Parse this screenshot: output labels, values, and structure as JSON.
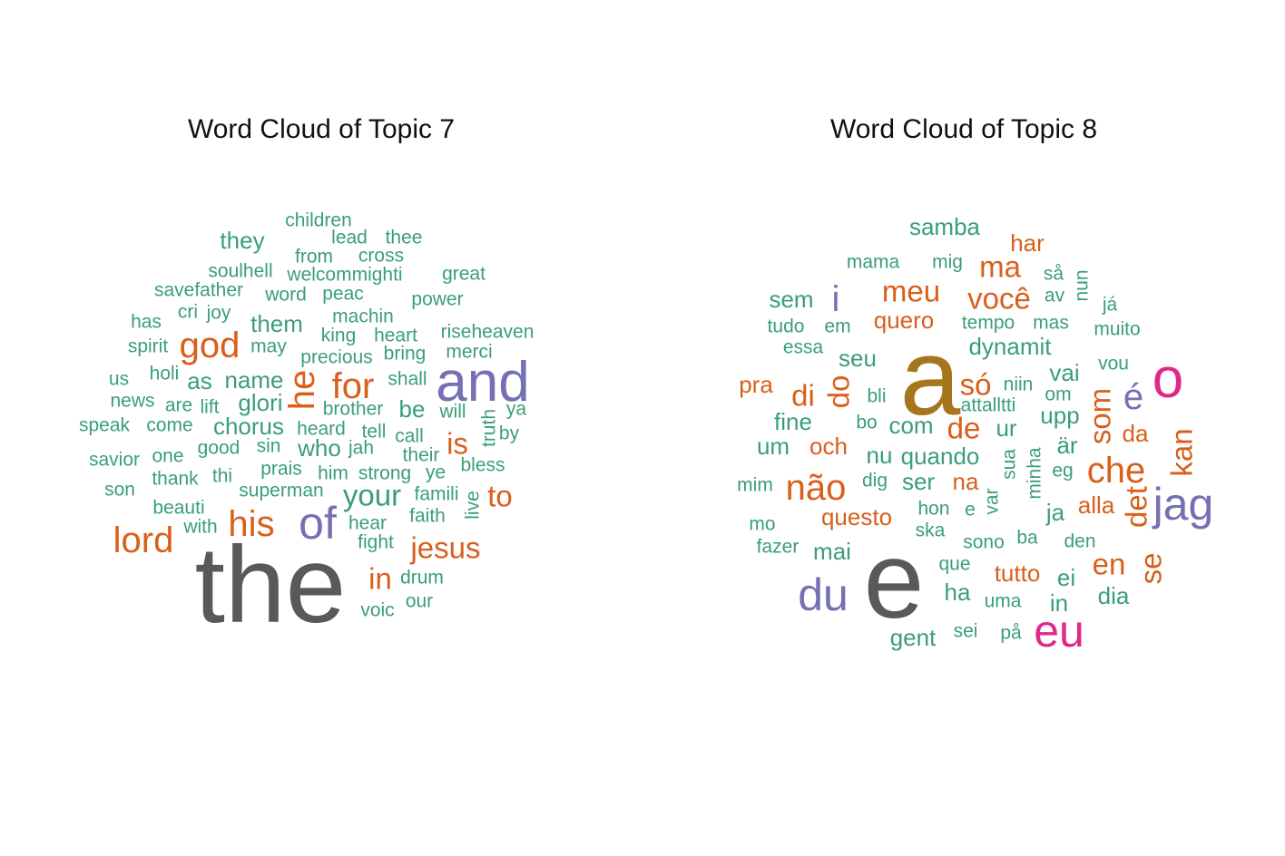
{
  "colors": {
    "green": "#3a9e78",
    "orange": "#d95f1a",
    "purple": "#7570b3",
    "gray": "#595959",
    "pink": "#e0288a",
    "brown": "#a6761d"
  },
  "panels": [
    {
      "title": "Word Cloud of Topic  7",
      "words": [
        {
          "text": "the",
          "weight": 10,
          "color": "gray"
        },
        {
          "text": "and",
          "weight": 6,
          "color": "purple"
        },
        {
          "text": "of",
          "weight": 5,
          "color": "purple"
        },
        {
          "text": "lord",
          "weight": 4,
          "color": "orange"
        },
        {
          "text": "god",
          "weight": 4,
          "color": "orange"
        },
        {
          "text": "for",
          "weight": 4,
          "color": "orange"
        },
        {
          "text": "he",
          "weight": 4,
          "color": "orange",
          "vertical": true
        },
        {
          "text": "his",
          "weight": 4,
          "color": "orange"
        },
        {
          "text": "is",
          "weight": 3,
          "color": "orange"
        },
        {
          "text": "to",
          "weight": 3,
          "color": "orange"
        },
        {
          "text": "jesus",
          "weight": 3,
          "color": "orange"
        },
        {
          "text": "in",
          "weight": 3,
          "color": "orange"
        },
        {
          "text": "your",
          "weight": 3,
          "color": "green"
        },
        {
          "text": "children",
          "weight": 1,
          "color": "green"
        },
        {
          "text": "they",
          "weight": 2,
          "color": "green"
        },
        {
          "text": "lead",
          "weight": 1,
          "color": "green"
        },
        {
          "text": "thee",
          "weight": 1,
          "color": "green"
        },
        {
          "text": "from",
          "weight": 1,
          "color": "green"
        },
        {
          "text": "cross",
          "weight": 1,
          "color": "green"
        },
        {
          "text": "soulhell",
          "weight": 1,
          "color": "green"
        },
        {
          "text": "welcommighti",
          "weight": 1,
          "color": "green"
        },
        {
          "text": "great",
          "weight": 1,
          "color": "green"
        },
        {
          "text": "savefather",
          "weight": 1,
          "color": "green"
        },
        {
          "text": "word",
          "weight": 1,
          "color": "green"
        },
        {
          "text": "peac",
          "weight": 1,
          "color": "green"
        },
        {
          "text": "power",
          "weight": 1,
          "color": "green"
        },
        {
          "text": "has",
          "weight": 1,
          "color": "green"
        },
        {
          "text": "cri",
          "weight": 1,
          "color": "green"
        },
        {
          "text": "joy",
          "weight": 1,
          "color": "green"
        },
        {
          "text": "them",
          "weight": 2,
          "color": "green"
        },
        {
          "text": "machin",
          "weight": 1,
          "color": "green"
        },
        {
          "text": "king",
          "weight": 1,
          "color": "green"
        },
        {
          "text": "heart",
          "weight": 1,
          "color": "green"
        },
        {
          "text": "riseheaven",
          "weight": 1,
          "color": "green"
        },
        {
          "text": "spirit",
          "weight": 1,
          "color": "green"
        },
        {
          "text": "may",
          "weight": 1,
          "color": "green"
        },
        {
          "text": "precious",
          "weight": 1,
          "color": "green"
        },
        {
          "text": "bring",
          "weight": 1,
          "color": "green"
        },
        {
          "text": "merci",
          "weight": 1,
          "color": "green"
        },
        {
          "text": "us",
          "weight": 1,
          "color": "green"
        },
        {
          "text": "holi",
          "weight": 1,
          "color": "green"
        },
        {
          "text": "as",
          "weight": 2,
          "color": "green"
        },
        {
          "text": "name",
          "weight": 2,
          "color": "green"
        },
        {
          "text": "shall",
          "weight": 1,
          "color": "green"
        },
        {
          "text": "news",
          "weight": 1,
          "color": "green"
        },
        {
          "text": "are",
          "weight": 1,
          "color": "green"
        },
        {
          "text": "lift",
          "weight": 1,
          "color": "green"
        },
        {
          "text": "glori",
          "weight": 2,
          "color": "green"
        },
        {
          "text": "brother",
          "weight": 1,
          "color": "green"
        },
        {
          "text": "be",
          "weight": 2,
          "color": "green"
        },
        {
          "text": "will",
          "weight": 1,
          "color": "green"
        },
        {
          "text": "truth",
          "weight": 1,
          "color": "green",
          "vertical": true
        },
        {
          "text": "ya",
          "weight": 1,
          "color": "green"
        },
        {
          "text": "speak",
          "weight": 1,
          "color": "green"
        },
        {
          "text": "come",
          "weight": 1,
          "color": "green"
        },
        {
          "text": "chorus",
          "weight": 2,
          "color": "green"
        },
        {
          "text": "heard",
          "weight": 1,
          "color": "green"
        },
        {
          "text": "tell",
          "weight": 1,
          "color": "green"
        },
        {
          "text": "call",
          "weight": 1,
          "color": "green"
        },
        {
          "text": "by",
          "weight": 1,
          "color": "green"
        },
        {
          "text": "savior",
          "weight": 1,
          "color": "green"
        },
        {
          "text": "one",
          "weight": 1,
          "color": "green"
        },
        {
          "text": "good",
          "weight": 1,
          "color": "green"
        },
        {
          "text": "sin",
          "weight": 1,
          "color": "green"
        },
        {
          "text": "who",
          "weight": 2,
          "color": "green"
        },
        {
          "text": "jah",
          "weight": 1,
          "color": "green"
        },
        {
          "text": "their",
          "weight": 1,
          "color": "green"
        },
        {
          "text": "bless",
          "weight": 1,
          "color": "green"
        },
        {
          "text": "son",
          "weight": 1,
          "color": "green"
        },
        {
          "text": "thank",
          "weight": 1,
          "color": "green"
        },
        {
          "text": "thi",
          "weight": 1,
          "color": "green"
        },
        {
          "text": "prais",
          "weight": 1,
          "color": "green"
        },
        {
          "text": "him",
          "weight": 1,
          "color": "green"
        },
        {
          "text": "strong",
          "weight": 1,
          "color": "green"
        },
        {
          "text": "ye",
          "weight": 1,
          "color": "green"
        },
        {
          "text": "beauti",
          "weight": 1,
          "color": "green"
        },
        {
          "text": "superman",
          "weight": 1,
          "color": "green"
        },
        {
          "text": "famili",
          "weight": 1,
          "color": "green"
        },
        {
          "text": "live",
          "weight": 1,
          "color": "green",
          "vertical": true
        },
        {
          "text": "with",
          "weight": 1,
          "color": "green"
        },
        {
          "text": "hear",
          "weight": 1,
          "color": "green"
        },
        {
          "text": "faith",
          "weight": 1,
          "color": "green"
        },
        {
          "text": "fight",
          "weight": 1,
          "color": "green"
        },
        {
          "text": "drum",
          "weight": 1,
          "color": "green"
        },
        {
          "text": "our",
          "weight": 1,
          "color": "green"
        },
        {
          "text": "voic",
          "weight": 1,
          "color": "green"
        }
      ]
    },
    {
      "title": "Word Cloud of Topic  8",
      "words": [
        {
          "text": "a",
          "weight": 10,
          "color": "brown"
        },
        {
          "text": "e",
          "weight": 10,
          "color": "gray"
        },
        {
          "text": "o",
          "weight": 6,
          "color": "pink"
        },
        {
          "text": "eu",
          "weight": 5,
          "color": "pink"
        },
        {
          "text": "du",
          "weight": 5,
          "color": "purple"
        },
        {
          "text": "jag",
          "weight": 5,
          "color": "purple"
        },
        {
          "text": "é",
          "weight": 4,
          "color": "purple"
        },
        {
          "text": "i",
          "weight": 4,
          "color": "purple"
        },
        {
          "text": "não",
          "weight": 4,
          "color": "orange"
        },
        {
          "text": "che",
          "weight": 4,
          "color": "orange"
        },
        {
          "text": "meu",
          "weight": 3,
          "color": "orange"
        },
        {
          "text": "você",
          "weight": 3,
          "color": "orange"
        },
        {
          "text": "ma",
          "weight": 3,
          "color": "orange"
        },
        {
          "text": "har",
          "weight": 2,
          "color": "orange"
        },
        {
          "text": "di",
          "weight": 3,
          "color": "orange"
        },
        {
          "text": "do",
          "weight": 3,
          "color": "orange",
          "vertical": true
        },
        {
          "text": "só",
          "weight": 3,
          "color": "orange"
        },
        {
          "text": "de",
          "weight": 3,
          "color": "orange"
        },
        {
          "text": "som",
          "weight": 3,
          "color": "orange",
          "vertical": true
        },
        {
          "text": "kan",
          "weight": 3,
          "color": "orange",
          "vertical": true
        },
        {
          "text": "det",
          "weight": 3,
          "color": "orange",
          "vertical": true
        },
        {
          "text": "se",
          "weight": 3,
          "color": "orange",
          "vertical": true
        },
        {
          "text": "en",
          "weight": 3,
          "color": "orange"
        },
        {
          "text": "pra",
          "weight": 2,
          "color": "orange"
        },
        {
          "text": "quero",
          "weight": 2,
          "color": "orange"
        },
        {
          "text": "och",
          "weight": 2,
          "color": "orange"
        },
        {
          "text": "na",
          "weight": 2,
          "color": "orange"
        },
        {
          "text": "questo",
          "weight": 2,
          "color": "orange"
        },
        {
          "text": "alla",
          "weight": 2,
          "color": "orange"
        },
        {
          "text": "da",
          "weight": 2,
          "color": "orange"
        },
        {
          "text": "tutto",
          "weight": 2,
          "color": "orange"
        },
        {
          "text": "samba",
          "weight": 2,
          "color": "green"
        },
        {
          "text": "mama",
          "weight": 1,
          "color": "green"
        },
        {
          "text": "mig",
          "weight": 1,
          "color": "green"
        },
        {
          "text": "så",
          "weight": 1,
          "color": "green"
        },
        {
          "text": "nun",
          "weight": 1,
          "color": "green",
          "vertical": true
        },
        {
          "text": "sem",
          "weight": 2,
          "color": "green"
        },
        {
          "text": "av",
          "weight": 1,
          "color": "green"
        },
        {
          "text": "já",
          "weight": 1,
          "color": "green"
        },
        {
          "text": "tudo",
          "weight": 1,
          "color": "green"
        },
        {
          "text": "em",
          "weight": 1,
          "color": "green"
        },
        {
          "text": "tempo",
          "weight": 1,
          "color": "green"
        },
        {
          "text": "mas",
          "weight": 1,
          "color": "green"
        },
        {
          "text": "muito",
          "weight": 1,
          "color": "green"
        },
        {
          "text": "essa",
          "weight": 1,
          "color": "green"
        },
        {
          "text": "seu",
          "weight": 2,
          "color": "green"
        },
        {
          "text": "dynamit",
          "weight": 2,
          "color": "green"
        },
        {
          "text": "vai",
          "weight": 2,
          "color": "green"
        },
        {
          "text": "vou",
          "weight": 1,
          "color": "green"
        },
        {
          "text": "bli",
          "weight": 1,
          "color": "green"
        },
        {
          "text": "niin",
          "weight": 1,
          "color": "green"
        },
        {
          "text": "om",
          "weight": 1,
          "color": "green"
        },
        {
          "text": "attalltti",
          "weight": 1,
          "color": "green"
        },
        {
          "text": "upp",
          "weight": 2,
          "color": "green"
        },
        {
          "text": "fine",
          "weight": 2,
          "color": "green"
        },
        {
          "text": "bo",
          "weight": 1,
          "color": "green"
        },
        {
          "text": "com",
          "weight": 2,
          "color": "green"
        },
        {
          "text": "ur",
          "weight": 2,
          "color": "green"
        },
        {
          "text": "um",
          "weight": 2,
          "color": "green"
        },
        {
          "text": "nu",
          "weight": 2,
          "color": "green"
        },
        {
          "text": "quando",
          "weight": 2,
          "color": "green"
        },
        {
          "text": "sua",
          "weight": 1,
          "color": "green",
          "vertical": true
        },
        {
          "text": "är",
          "weight": 2,
          "color": "green"
        },
        {
          "text": "mim",
          "weight": 1,
          "color": "green"
        },
        {
          "text": "dig",
          "weight": 1,
          "color": "green"
        },
        {
          "text": "ser",
          "weight": 2,
          "color": "green"
        },
        {
          "text": "minha",
          "weight": 1,
          "color": "green",
          "vertical": true
        },
        {
          "text": "eg",
          "weight": 1,
          "color": "green"
        },
        {
          "text": "mo",
          "weight": 1,
          "color": "green"
        },
        {
          "text": "hon",
          "weight": 1,
          "color": "green"
        },
        {
          "text": "e",
          "weight": 1,
          "color": "green"
        },
        {
          "text": "var",
          "weight": 1,
          "color": "green",
          "vertical": true
        },
        {
          "text": "ja",
          "weight": 2,
          "color": "green"
        },
        {
          "text": "fazer",
          "weight": 1,
          "color": "green"
        },
        {
          "text": "mai",
          "weight": 2,
          "color": "green"
        },
        {
          "text": "ska",
          "weight": 1,
          "color": "green"
        },
        {
          "text": "sono",
          "weight": 1,
          "color": "green"
        },
        {
          "text": "ba",
          "weight": 1,
          "color": "green"
        },
        {
          "text": "den",
          "weight": 1,
          "color": "green"
        },
        {
          "text": "que",
          "weight": 1,
          "color": "green"
        },
        {
          "text": "ei",
          "weight": 2,
          "color": "green"
        },
        {
          "text": "ha",
          "weight": 2,
          "color": "green"
        },
        {
          "text": "uma",
          "weight": 1,
          "color": "green"
        },
        {
          "text": "in",
          "weight": 2,
          "color": "green"
        },
        {
          "text": "dia",
          "weight": 2,
          "color": "green"
        },
        {
          "text": "gent",
          "weight": 2,
          "color": "green"
        },
        {
          "text": "sei",
          "weight": 1,
          "color": "green"
        },
        {
          "text": "på",
          "weight": 1,
          "color": "green"
        }
      ]
    }
  ]
}
